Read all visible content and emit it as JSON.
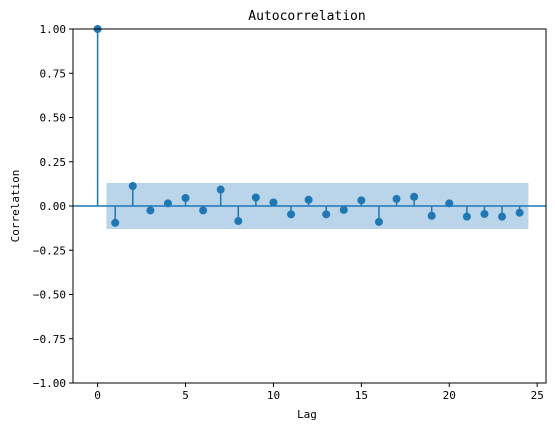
{
  "chart_data": {
    "type": "stem",
    "title": "Autocorrelation",
    "xlabel": "Lag",
    "ylabel": "Correlation",
    "xlim": [
      -1.4,
      25.5
    ],
    "ylim": [
      -1.0,
      1.0
    ],
    "xticks": [
      0,
      5,
      10,
      15,
      20,
      25
    ],
    "xtick_labels": [
      "0",
      "5",
      "10",
      "15",
      "20",
      "25"
    ],
    "yticks": [
      1.0,
      0.75,
      0.5,
      0.25,
      0.0,
      -0.25,
      -0.5,
      -0.75,
      -1.0
    ],
    "ytick_labels": [
      "1.00",
      "0.75",
      "0.50",
      "0.25",
      "0.00",
      "−0.25",
      "−0.50",
      "−0.75",
      "−1.00"
    ],
    "grid": false,
    "series_color": "#1f77b4",
    "confidence_band_color": "#aecde6",
    "lags": [
      0,
      1,
      2,
      3,
      4,
      5,
      6,
      7,
      8,
      9,
      10,
      11,
      12,
      13,
      14,
      15,
      16,
      17,
      18,
      19,
      20,
      21,
      22,
      23,
      24
    ],
    "values": [
      1.0,
      -0.095,
      0.113,
      -0.025,
      0.015,
      0.045,
      -0.025,
      0.093,
      -0.085,
      0.048,
      0.02,
      -0.047,
      0.035,
      -0.047,
      -0.022,
      0.032,
      -0.09,
      0.04,
      0.052,
      -0.055,
      0.015,
      -0.06,
      -0.045,
      -0.06,
      -0.038
    ],
    "confidence_band": {
      "x_start": 0.5,
      "x_end": 24.5,
      "upper": 0.13,
      "lower": -0.13
    }
  }
}
